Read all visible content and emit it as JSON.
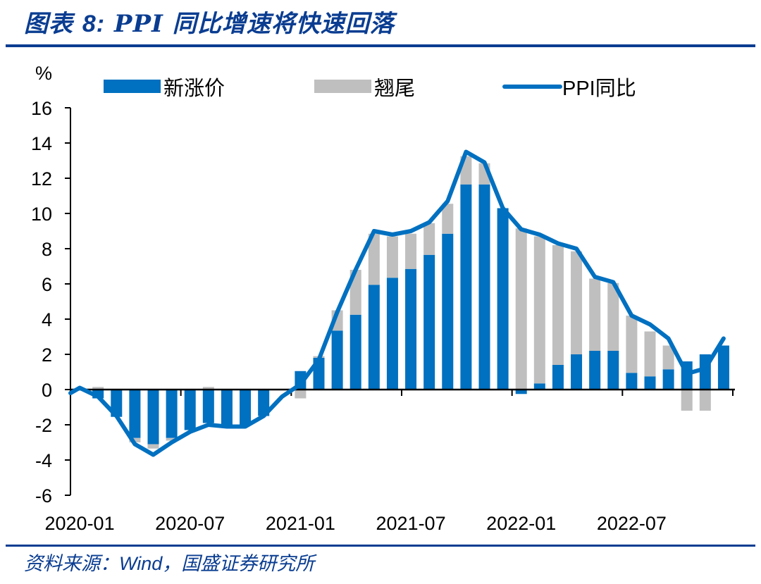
{
  "title": {
    "prefix": "图表 ",
    "number": "8:",
    "text": " PPI 同比增速将快速回落"
  },
  "source": {
    "prefix": "资料来源：",
    "wind": "Wind",
    "suffix": "，国盛证券研究所"
  },
  "colors": {
    "new_price": "#0070C0",
    "carryover": "#BFBFBF",
    "ppi_line": "#0070C0",
    "title": "#0A3D91",
    "rule": "#0A3D91"
  },
  "chart_data": {
    "type": "bar",
    "subtype": "stacked bar + line",
    "title": "PPI 同比增速将快速回落",
    "ylabel": "%",
    "xlabel": "",
    "ylim": [
      -6,
      16
    ],
    "yticks": [
      16,
      14,
      12,
      10,
      8,
      6,
      4,
      2,
      0,
      -2,
      -4,
      -6
    ],
    "xtick_labels": [
      "2020-01",
      "2020-07",
      "2021-01",
      "2021-07",
      "2022-01",
      "2022-07"
    ],
    "grid": false,
    "legend_position": "top",
    "categories": [
      "2020-01",
      "2020-02",
      "2020-03",
      "2020-04",
      "2020-05",
      "2020-06",
      "2020-07",
      "2020-08",
      "2020-09",
      "2020-10",
      "2020-11",
      "2020-12",
      "2021-01",
      "2021-02",
      "2021-03",
      "2021-04",
      "2021-05",
      "2021-06",
      "2021-07",
      "2021-08",
      "2021-09",
      "2021-10",
      "2021-11",
      "2021-12",
      "2022-01",
      "2022-02",
      "2022-03",
      "2022-04",
      "2022-05",
      "2022-06",
      "2022-07",
      "2022-08",
      "2022-09",
      "2022-10",
      "2022-11",
      "2022-12"
    ],
    "series": [
      {
        "name": "新涨价",
        "type": "bar",
        "values": [
          0,
          -0.5,
          -1.55,
          -2.75,
          -3.1,
          -2.75,
          -2.3,
          -1.9,
          -2.0,
          -2.0,
          -1.5,
          0,
          1.05,
          1.8,
          3.35,
          4.25,
          5.95,
          6.35,
          6.85,
          7.65,
          8.85,
          11.65,
          11.65,
          10.3,
          -0.25,
          0.35,
          1.4,
          2.0,
          2.2,
          2.2,
          0.95,
          0.75,
          1.15,
          1.6,
          2.0,
          2.5
        ]
      },
      {
        "name": "翘尾",
        "type": "bar",
        "values": [
          0,
          0.15,
          0,
          -0.25,
          -0.25,
          -0.15,
          0,
          0.15,
          0,
          0,
          0,
          0,
          -0.5,
          0.1,
          1.15,
          2.55,
          2.9,
          2.35,
          2.0,
          1.8,
          1.7,
          1.6,
          1.2,
          0,
          9.15,
          8.35,
          6.8,
          5.85,
          4.1,
          3.85,
          3.25,
          2.55,
          1.35,
          -1.2,
          -1.2,
          0
        ]
      },
      {
        "name": "PPI同比",
        "type": "line",
        "values": [
          0.1,
          -0.4,
          -1.5,
          -3.1,
          -3.7,
          -3.0,
          -2.4,
          -2.0,
          -2.1,
          -2.1,
          -1.5,
          -0.4,
          0.3,
          1.7,
          4.4,
          6.8,
          9.0,
          8.8,
          9.0,
          9.5,
          10.7,
          13.5,
          12.9,
          10.3,
          9.1,
          8.8,
          8.3,
          8.0,
          6.4,
          6.1,
          4.2,
          3.7,
          2.9,
          0.9,
          1.2,
          2.9
        ]
      }
    ]
  }
}
